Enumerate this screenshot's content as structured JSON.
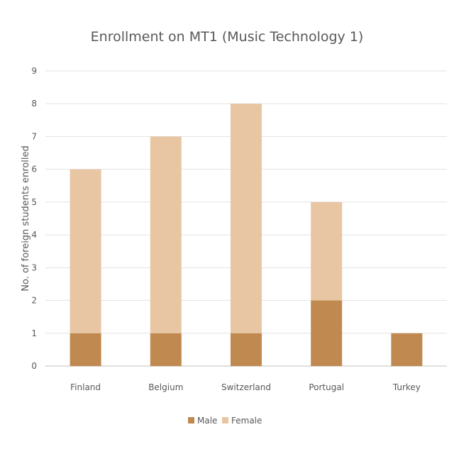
{
  "chart_data": {
    "type": "bar",
    "stacked": true,
    "title": "Enrollment on MT1 (Music Technology 1)",
    "xlabel": "",
    "ylabel": "No. of foreign students enrolled",
    "ylim": [
      0,
      9
    ],
    "yticks": [
      0,
      1,
      2,
      3,
      4,
      5,
      6,
      7,
      8,
      9
    ],
    "categories": [
      "Finland",
      "Belgium",
      "Switzerland",
      "Portugal",
      "Turkey"
    ],
    "series": [
      {
        "name": "Male",
        "values": [
          1,
          1,
          1,
          2,
          1
        ],
        "color": "#c0894f"
      },
      {
        "name": "Female",
        "values": [
          5,
          6,
          7,
          3,
          0
        ],
        "color": "#e8c6a3"
      }
    ],
    "grid": true,
    "legend_position": "bottom"
  }
}
